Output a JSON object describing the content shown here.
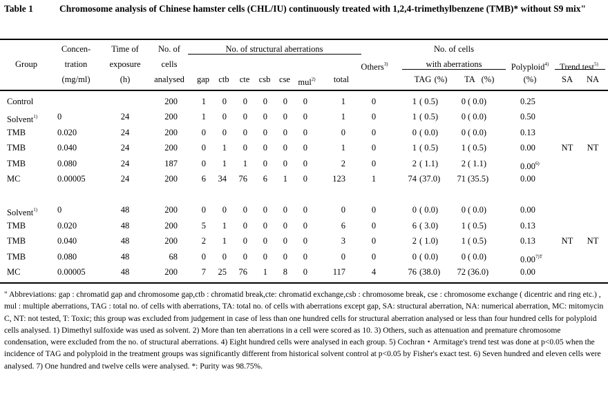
{
  "table_label": "Table 1",
  "title": "Chromosome analysis of Chinese hamster cells (CHL/IU) continuously treated with 1,2,4-trimethylbenzene (TMB)* without S9 mix\"",
  "headers": {
    "group": "Group",
    "conc": [
      "Concen-",
      "tration",
      "(mg/ml)"
    ],
    "time": [
      "Time of",
      "exposure",
      "(h)"
    ],
    "cells": [
      "No. of",
      "cells",
      "analysed"
    ],
    "structural": "No. of structural aberrations",
    "struct_cols": [
      "gap",
      "ctb",
      "cte",
      "csb",
      "cse",
      "mul",
      "total"
    ],
    "mul_note": "2)",
    "others": "Others",
    "others_note": "3)",
    "with_ab": [
      "No. of cells",
      "with aberrations"
    ],
    "ab_cols": [
      "TAG",
      "(%)",
      "TA",
      "(%)"
    ],
    "polyploid": "Polyploid",
    "polyploid_note": "4)",
    "polyploid_unit": "(%)",
    "trend": "Trend test",
    "trend_note": "5)",
    "trend_cols": [
      "SA",
      "NA"
    ]
  },
  "rows": [
    {
      "group": "Control",
      "note": "",
      "conc": "",
      "time": "",
      "cells": "200",
      "s": [
        "1",
        "0",
        "0",
        "0",
        "0",
        "0",
        "1"
      ],
      "others": "0",
      "tag": "1",
      "tagp": "( 0.5)",
      "ta": "0",
      "tap": "( 0.0)",
      "poly": "0.25",
      "polynote": "",
      "sa": "",
      "na": ""
    },
    {
      "group": "Solvent",
      "note": "1)",
      "conc": "0",
      "time": "24",
      "cells": "200",
      "s": [
        "1",
        "0",
        "0",
        "0",
        "0",
        "0",
        "1"
      ],
      "others": "0",
      "tag": "1",
      "tagp": "( 0.5)",
      "ta": "0",
      "tap": "( 0.0)",
      "poly": "0.50",
      "polynote": "",
      "sa": "",
      "na": ""
    },
    {
      "group": "TMB",
      "note": "",
      "conc": "0.020",
      "time": "24",
      "cells": "200",
      "s": [
        "0",
        "0",
        "0",
        "0",
        "0",
        "0",
        "0"
      ],
      "others": "0",
      "tag": "0",
      "tagp": "( 0.0)",
      "ta": "0",
      "tap": "( 0.0)",
      "poly": "0.13",
      "polynote": "",
      "sa": "",
      "na": ""
    },
    {
      "group": "TMB",
      "note": "",
      "conc": "0.040",
      "time": "24",
      "cells": "200",
      "s": [
        "0",
        "1",
        "0",
        "0",
        "0",
        "0",
        "1"
      ],
      "others": "0",
      "tag": "1",
      "tagp": "( 0.5)",
      "ta": "1",
      "tap": "( 0.5)",
      "poly": "0.00",
      "polynote": "",
      "sa": "NT",
      "na": "NT"
    },
    {
      "group": "TMB",
      "note": "",
      "conc": "0.080",
      "time": "24",
      "cells": "187",
      "s": [
        "0",
        "1",
        "1",
        "0",
        "0",
        "0",
        "2"
      ],
      "others": "0",
      "tag": "2",
      "tagp": "( 1.1)",
      "ta": "2",
      "tap": "( 1.1)",
      "poly": "0.00",
      "polynote": "6)",
      "sa": "",
      "na": ""
    },
    {
      "group": "MC",
      "note": "",
      "conc": "0.00005",
      "time": "24",
      "cells": "200",
      "s": [
        "6",
        "34",
        "76",
        "6",
        "1",
        "0",
        "123"
      ],
      "others": "1",
      "tag": "74",
      "tagp": "(37.0)",
      "ta": "71",
      "tap": "(35.5)",
      "poly": "0.00",
      "polynote": "",
      "sa": "",
      "na": ""
    },
    {
      "group": "Solvent",
      "note": "1)",
      "conc": "0",
      "time": "48",
      "cells": "200",
      "s": [
        "0",
        "0",
        "0",
        "0",
        "0",
        "0",
        "0"
      ],
      "others": "0",
      "tag": "0",
      "tagp": "( 0.0)",
      "ta": "0",
      "tap": "( 0.0)",
      "poly": "0.00",
      "polynote": "",
      "sa": "",
      "na": ""
    },
    {
      "group": "TMB",
      "note": "",
      "conc": "0.020",
      "time": "48",
      "cells": "200",
      "s": [
        "5",
        "1",
        "0",
        "0",
        "0",
        "0",
        "6"
      ],
      "others": "0",
      "tag": "6",
      "tagp": "( 3.0)",
      "ta": "1",
      "tap": "( 0.5)",
      "poly": "0.13",
      "polynote": "",
      "sa": "",
      "na": ""
    },
    {
      "group": "TMB",
      "note": "",
      "conc": "0.040",
      "time": "48",
      "cells": "200",
      "s": [
        "2",
        "1",
        "0",
        "0",
        "0",
        "0",
        "3"
      ],
      "others": "0",
      "tag": "2",
      "tagp": "( 1.0)",
      "ta": "1",
      "tap": "( 0.5)",
      "poly": "0.13",
      "polynote": "",
      "sa": "NT",
      "na": "NT"
    },
    {
      "group": "TMB",
      "note": "",
      "conc": "0.080",
      "time": "48",
      "cells": "68",
      "s": [
        "0",
        "0",
        "0",
        "0",
        "0",
        "0",
        "0"
      ],
      "others": "0",
      "tag": "0",
      "tagp": "( 0.0)",
      "ta": "0",
      "tap": "( 0.0)",
      "poly": "0.00",
      "polynote": "7)T",
      "sa": "",
      "na": ""
    },
    {
      "group": "MC",
      "note": "",
      "conc": "0.00005",
      "time": "48",
      "cells": "200",
      "s": [
        "7",
        "25",
        "76",
        "1",
        "8",
        "0",
        "117"
      ],
      "others": "4",
      "tag": "76",
      "tagp": "(38.0)",
      "ta": "72",
      "tap": "(36.0)",
      "poly": "0.00",
      "polynote": "",
      "sa": "",
      "na": ""
    }
  ],
  "footnote": "\" Abbreviations: gap : chromatid gap and chromosome gap,ctb : chromatid break,cte: chromatid exchange,csb : chromosome break, cse : chromosome exchange ( dicentric and ring etc.) , mul : multiple aberrations, TAG : total no. of cells with aberrations, TA: total no. of cells with aberrations except gap, SA: structural aberration, NA: numerical aberration, MC: mitomycin C, NT: not tested, T: Toxic; this group was excluded from judgement in case of less than one hundred cells for structural aberration analysed or less than four hundred cells for polyploid cells analysed.   1) Dimethyl sulfoxide was used as solvent.   2) More than ten aberrations in a cell were scored as 10.   3) Others, such as attenuation and premature chromosome condensation, were excluded from the no. of structural aberrations.   4) Eight hundred cells were analysed in each group.   5) Cochran・Armitage's trend test was done at p<0.05 when the incidence of TAG and polyploid in the treatment groups was significantly different from historical solvent control at p<0.05 by Fisher's exact test.   6) Seven hundred and eleven cells were analysed.   7) One hundred and twelve cells were analysed.   *: Purity was 98.75%."
}
